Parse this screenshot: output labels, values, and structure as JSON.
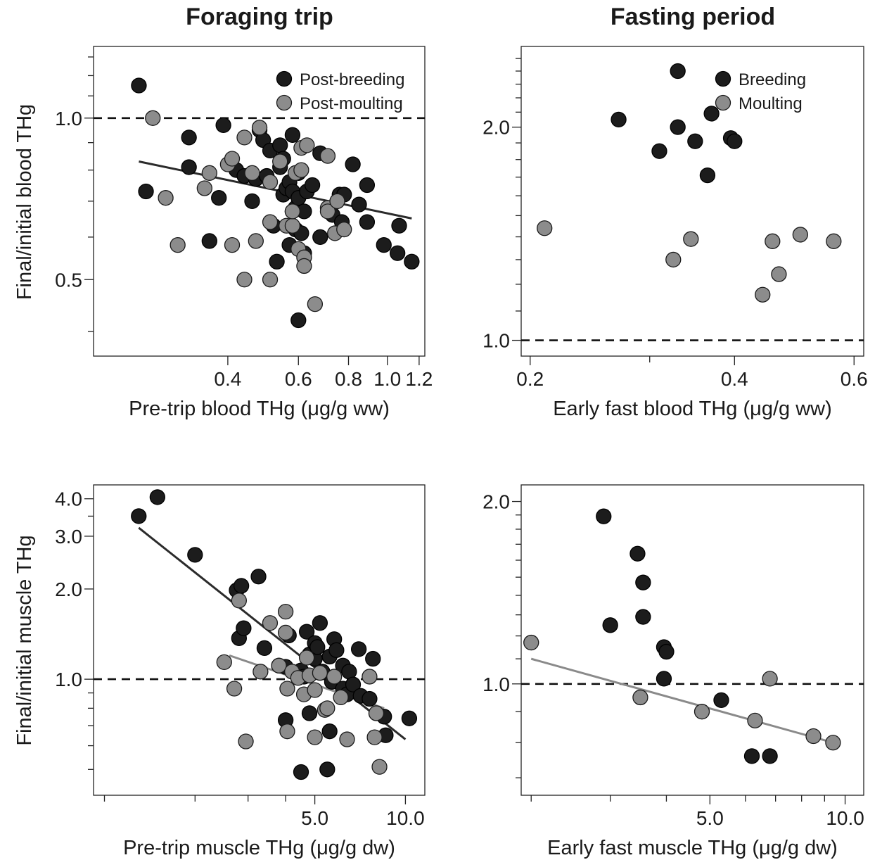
{
  "figure": {
    "column_titles": [
      "Foraging trip",
      "Fasting period"
    ],
    "y_labels": [
      "Final/initial blood THg",
      "Final/initial muscle THg"
    ]
  },
  "colors": {
    "dark": "#1c1c1c",
    "light": "#8c8c8c",
    "dark_line": "#2b2b2b",
    "light_line": "#8a8a8a",
    "reference_line": "#111111"
  },
  "chart_data": [
    {
      "id": "foraging-blood",
      "type": "scatter",
      "xlabel": "Pre-trip blood THg (μg/g ww)",
      "ylabel": "Final/initial blood THg",
      "x_scale": "log",
      "y_scale": "log",
      "xlim": [
        0.185,
        1.24
      ],
      "ylim": [
        0.36,
        1.36
      ],
      "x_ticks": [
        0.4,
        0.6,
        0.8,
        1.0,
        1.2
      ],
      "x_tick_labels": [
        "0.4",
        "0.6",
        "0.8",
        "1.0",
        "1.2"
      ],
      "x_minor_ticks": [],
      "y_ticks": [
        0.5,
        1.0
      ],
      "y_tick_labels": [
        "0.5",
        "1.0"
      ],
      "y_minor_ticks": [
        0.4,
        0.6,
        0.7,
        0.8,
        0.9,
        1.1,
        1.2,
        1.3
      ],
      "reference_y": 1.0,
      "legend": {
        "position": "top-right",
        "entries": [
          {
            "label": "Post-breeding",
            "shade": "dark"
          },
          {
            "label": "Post-moulting",
            "shade": "light"
          }
        ]
      },
      "series": [
        {
          "name": "Post-breeding",
          "shade": "dark",
          "points": [
            [
              0.24,
              1.15
            ],
            [
              0.25,
              0.73
            ],
            [
              0.32,
              0.92
            ],
            [
              0.32,
              0.81
            ],
            [
              0.36,
              0.59
            ],
            [
              0.38,
              0.71
            ],
            [
              0.39,
              0.97
            ],
            [
              0.42,
              0.8
            ],
            [
              0.44,
              0.78
            ],
            [
              0.46,
              0.7
            ],
            [
              0.47,
              0.77
            ],
            [
              0.48,
              0.95
            ],
            [
              0.49,
              0.91
            ],
            [
              0.5,
              0.78
            ],
            [
              0.51,
              0.87
            ],
            [
              0.52,
              0.63
            ],
            [
              0.53,
              0.54
            ],
            [
              0.54,
              0.81
            ],
            [
              0.54,
              0.89
            ],
            [
              0.55,
              0.84
            ],
            [
              0.55,
              0.72
            ],
            [
              0.56,
              0.74
            ],
            [
              0.57,
              0.76
            ],
            [
              0.57,
              0.58
            ],
            [
              0.58,
              0.73
            ],
            [
              0.58,
              0.93
            ],
            [
              0.59,
              0.62
            ],
            [
              0.59,
              0.68
            ],
            [
              0.6,
              0.79
            ],
            [
              0.6,
              0.71
            ],
            [
              0.61,
              0.61
            ],
            [
              0.62,
              0.67
            ],
            [
              0.62,
              0.56
            ],
            [
              0.6,
              0.42
            ],
            [
              0.63,
              0.73
            ],
            [
              0.65,
              0.75
            ],
            [
              0.68,
              0.6
            ],
            [
              0.68,
              0.86
            ],
            [
              0.72,
              0.68
            ],
            [
              0.73,
              0.66
            ],
            [
              0.75,
              0.7
            ],
            [
              0.76,
              0.72
            ],
            [
              0.77,
              0.64
            ],
            [
              0.78,
              0.72
            ],
            [
              0.82,
              0.82
            ],
            [
              0.85,
              0.69
            ],
            [
              0.89,
              0.64
            ],
            [
              0.89,
              0.75
            ],
            [
              0.98,
              0.58
            ],
            [
              1.07,
              0.63
            ],
            [
              1.06,
              0.56
            ],
            [
              1.15,
              0.54
            ]
          ]
        },
        {
          "name": "Post-moulting",
          "shade": "light",
          "points": [
            [
              0.26,
              1.0
            ],
            [
              0.28,
              0.71
            ],
            [
              0.3,
              0.58
            ],
            [
              0.35,
              0.74
            ],
            [
              0.36,
              0.79
            ],
            [
              0.4,
              0.82
            ],
            [
              0.41,
              0.84
            ],
            [
              0.41,
              0.58
            ],
            [
              0.44,
              0.5
            ],
            [
              0.44,
              0.92
            ],
            [
              0.46,
              0.79
            ],
            [
              0.47,
              0.59
            ],
            [
              0.48,
              0.96
            ],
            [
              0.51,
              0.76
            ],
            [
              0.51,
              0.64
            ],
            [
              0.51,
              0.5
            ],
            [
              0.54,
              0.83
            ],
            [
              0.56,
              0.63
            ],
            [
              0.58,
              0.63
            ],
            [
              0.58,
              0.67
            ],
            [
              0.59,
              0.79
            ],
            [
              0.58,
              0.67
            ],
            [
              0.6,
              0.57
            ],
            [
              0.61,
              0.8
            ],
            [
              0.61,
              0.88
            ],
            [
              0.62,
              0.55
            ],
            [
              0.62,
              0.53
            ],
            [
              0.63,
              0.89
            ],
            [
              0.66,
              0.45
            ],
            [
              0.71,
              0.68
            ],
            [
              0.71,
              0.85
            ],
            [
              0.71,
              0.67
            ],
            [
              0.74,
              0.61
            ],
            [
              0.75,
              0.7
            ],
            [
              0.78,
              0.62
            ]
          ]
        }
      ],
      "trend_lines": [
        {
          "shade": "dark",
          "x": [
            0.24,
            1.15
          ],
          "y": [
            0.83,
            0.65
          ]
        }
      ]
    },
    {
      "id": "fasting-blood",
      "type": "scatter",
      "xlabel": "Early fast blood THg (μg/g ww)",
      "ylabel": "",
      "x_scale": "log",
      "y_scale": "log",
      "xlim": [
        0.194,
        0.62
      ],
      "ylim": [
        0.95,
        2.6
      ],
      "x_ticks": [
        0.2,
        0.4,
        0.6
      ],
      "x_tick_labels": [
        "0.2",
        "0.4",
        "0.6"
      ],
      "x_minor_ticks": [
        0.3
      ],
      "y_ticks": [
        1.0,
        2.0
      ],
      "y_tick_labels": [
        "1.0",
        "2.0"
      ],
      "y_minor_ticks": [
        1.1,
        1.2,
        1.3,
        1.4,
        1.5,
        1.6,
        1.7,
        1.8,
        1.9,
        2.1,
        2.2,
        2.3,
        2.4,
        2.5
      ],
      "reference_y": 1.0,
      "legend": {
        "position": "top-right",
        "entries": [
          {
            "label": "Breeding",
            "shade": "dark"
          },
          {
            "label": "Moulting",
            "shade": "light"
          }
        ]
      },
      "series": [
        {
          "name": "Breeding",
          "shade": "dark",
          "points": [
            [
              0.27,
              2.05
            ],
            [
              0.31,
              1.85
            ],
            [
              0.33,
              2.0
            ],
            [
              0.33,
              2.4
            ],
            [
              0.35,
              1.91
            ],
            [
              0.365,
              1.71
            ],
            [
              0.37,
              2.09
            ],
            [
              0.395,
              1.93
            ],
            [
              0.4,
              1.91
            ]
          ]
        },
        {
          "name": "Moulting",
          "shade": "light",
          "points": [
            [
              0.21,
              1.44
            ],
            [
              0.325,
              1.3
            ],
            [
              0.345,
              1.39
            ],
            [
              0.44,
              1.16
            ],
            [
              0.455,
              1.38
            ],
            [
              0.465,
              1.24
            ],
            [
              0.5,
              1.41
            ],
            [
              0.56,
              1.38
            ]
          ]
        }
      ],
      "trend_lines": []
    },
    {
      "id": "foraging-muscle",
      "type": "scatter",
      "xlabel": "Pre-trip muscle THg (μg/g dw)",
      "ylabel": "Final/initial muscle THg",
      "x_scale": "log",
      "y_scale": "log",
      "xlim": [
        0.92,
        11.6
      ],
      "ylim": [
        0.41,
        4.45
      ],
      "x_ticks": [
        5.0,
        10.0
      ],
      "x_tick_labels": [
        "5.0",
        "10.0"
      ],
      "x_minor_ticks": [
        1,
        2,
        3,
        4
      ],
      "y_ticks": [
        1.0,
        2.0,
        3.0,
        4.0
      ],
      "y_tick_labels": [
        "1.0",
        "2.0",
        "3.0",
        "4.0"
      ],
      "y_minor_ticks": [
        0.5,
        0.6,
        0.7,
        0.8,
        0.9,
        3.5
      ],
      "reference_y": 1.0,
      "legend": null,
      "series": [
        {
          "name": "",
          "shade": "dark",
          "points": [
            [
              1.3,
              3.5
            ],
            [
              1.5,
              4.05
            ],
            [
              2.0,
              2.6
            ],
            [
              2.75,
              1.98
            ],
            [
              2.8,
              1.37
            ],
            [
              2.85,
              2.05
            ],
            [
              2.9,
              1.48
            ],
            [
              3.25,
              2.2
            ],
            [
              3.4,
              1.27
            ],
            [
              3.8,
              1.11
            ],
            [
              4.0,
              0.73
            ],
            [
              4.0,
              1.1
            ],
            [
              4.1,
              1.4
            ],
            [
              4.5,
              1.07
            ],
            [
              4.5,
              0.49
            ],
            [
              4.6,
              1.02
            ],
            [
              4.7,
              1.44
            ],
            [
              4.8,
              0.77
            ],
            [
              4.8,
              1.21
            ],
            [
              5.0,
              1.32
            ],
            [
              5.0,
              1.17
            ],
            [
              5.1,
              1.28
            ],
            [
              5.2,
              1.54
            ],
            [
              5.3,
              1.06
            ],
            [
              5.5,
              0.5
            ],
            [
              5.6,
              1.19
            ],
            [
              5.6,
              0.67
            ],
            [
              5.7,
              0.98
            ],
            [
              5.8,
              1.36
            ],
            [
              5.9,
              1.25
            ],
            [
              6.2,
              0.93
            ],
            [
              6.2,
              1.11
            ],
            [
              6.4,
              0.89
            ],
            [
              6.5,
              1.06
            ],
            [
              6.7,
              0.96
            ],
            [
              7.0,
              1.26
            ],
            [
              7.1,
              0.88
            ],
            [
              7.6,
              0.86
            ],
            [
              7.8,
              1.17
            ],
            [
              8.5,
              0.75
            ],
            [
              8.6,
              0.65
            ],
            [
              10.3,
              0.74
            ]
          ]
        },
        {
          "name": "",
          "shade": "light",
          "points": [
            [
              2.5,
              1.14
            ],
            [
              2.7,
              0.93
            ],
            [
              2.8,
              1.83
            ],
            [
              2.95,
              0.62
            ],
            [
              3.3,
              1.06
            ],
            [
              3.55,
              1.54
            ],
            [
              3.8,
              1.11
            ],
            [
              4.0,
              1.68
            ],
            [
              4.0,
              1.43
            ],
            [
              4.05,
              0.93
            ],
            [
              4.05,
              0.67
            ],
            [
              4.2,
              1.06
            ],
            [
              4.4,
              1.01
            ],
            [
              4.6,
              0.89
            ],
            [
              4.7,
              1.18
            ],
            [
              4.8,
              1.03
            ],
            [
              5.0,
              0.92
            ],
            [
              5.0,
              0.64
            ],
            [
              5.2,
              1.05
            ],
            [
              5.4,
              0.79
            ],
            [
              5.5,
              0.8
            ],
            [
              5.8,
              1.02
            ],
            [
              6.1,
              0.87
            ],
            [
              6.4,
              0.63
            ],
            [
              7.6,
              1.02
            ],
            [
              7.9,
              0.64
            ],
            [
              8.0,
              0.77
            ],
            [
              8.2,
              0.51
            ]
          ]
        }
      ],
      "trend_lines": [
        {
          "shade": "dark",
          "x": [
            1.3,
            10.0
          ],
          "y": [
            3.2,
            0.63
          ]
        },
        {
          "shade": "light",
          "x": [
            2.6,
            8.5
          ],
          "y": [
            1.2,
            0.8
          ]
        }
      ]
    },
    {
      "id": "fasting-muscle",
      "type": "scatter",
      "xlabel": "Early fast muscle THg (μg/g dw)",
      "ylabel": "",
      "x_scale": "log",
      "y_scale": "log",
      "xlim": [
        1.9,
        11.0
      ],
      "ylim": [
        0.655,
        2.13
      ],
      "x_ticks": [
        5.0,
        10.0
      ],
      "x_tick_labels": [
        "5.0",
        "10.0"
      ],
      "x_minor_ticks": [
        2,
        3,
        4,
        6,
        7,
        8,
        9
      ],
      "y_ticks": [
        1.0,
        2.0
      ],
      "y_tick_labels": [
        "1.0",
        "2.0"
      ],
      "y_minor_ticks": [
        0.7,
        0.8,
        0.9,
        1.1,
        1.2,
        1.3,
        1.4,
        1.5,
        1.6,
        1.7,
        1.8,
        1.9
      ],
      "reference_y": 1.0,
      "legend": null,
      "series": [
        {
          "name": "",
          "shade": "dark",
          "points": [
            [
              2.9,
              1.89
            ],
            [
              3.0,
              1.25
            ],
            [
              3.45,
              1.64
            ],
            [
              3.55,
              1.47
            ],
            [
              3.55,
              1.29
            ],
            [
              3.95,
              1.15
            ],
            [
              4.0,
              1.13
            ],
            [
              3.95,
              1.02
            ],
            [
              5.3,
              0.94
            ],
            [
              6.2,
              0.76
            ],
            [
              6.8,
              0.76
            ]
          ]
        },
        {
          "name": "",
          "shade": "light",
          "points": [
            [
              2.0,
              1.17
            ],
            [
              3.5,
              0.95
            ],
            [
              4.8,
              0.9
            ],
            [
              6.3,
              0.87
            ],
            [
              6.8,
              1.02
            ],
            [
              8.5,
              0.82
            ],
            [
              9.4,
              0.8
            ]
          ]
        }
      ],
      "trend_lines": [
        {
          "shade": "light",
          "x": [
            2.0,
            9.4
          ],
          "y": [
            1.1,
            0.8
          ]
        }
      ]
    }
  ]
}
